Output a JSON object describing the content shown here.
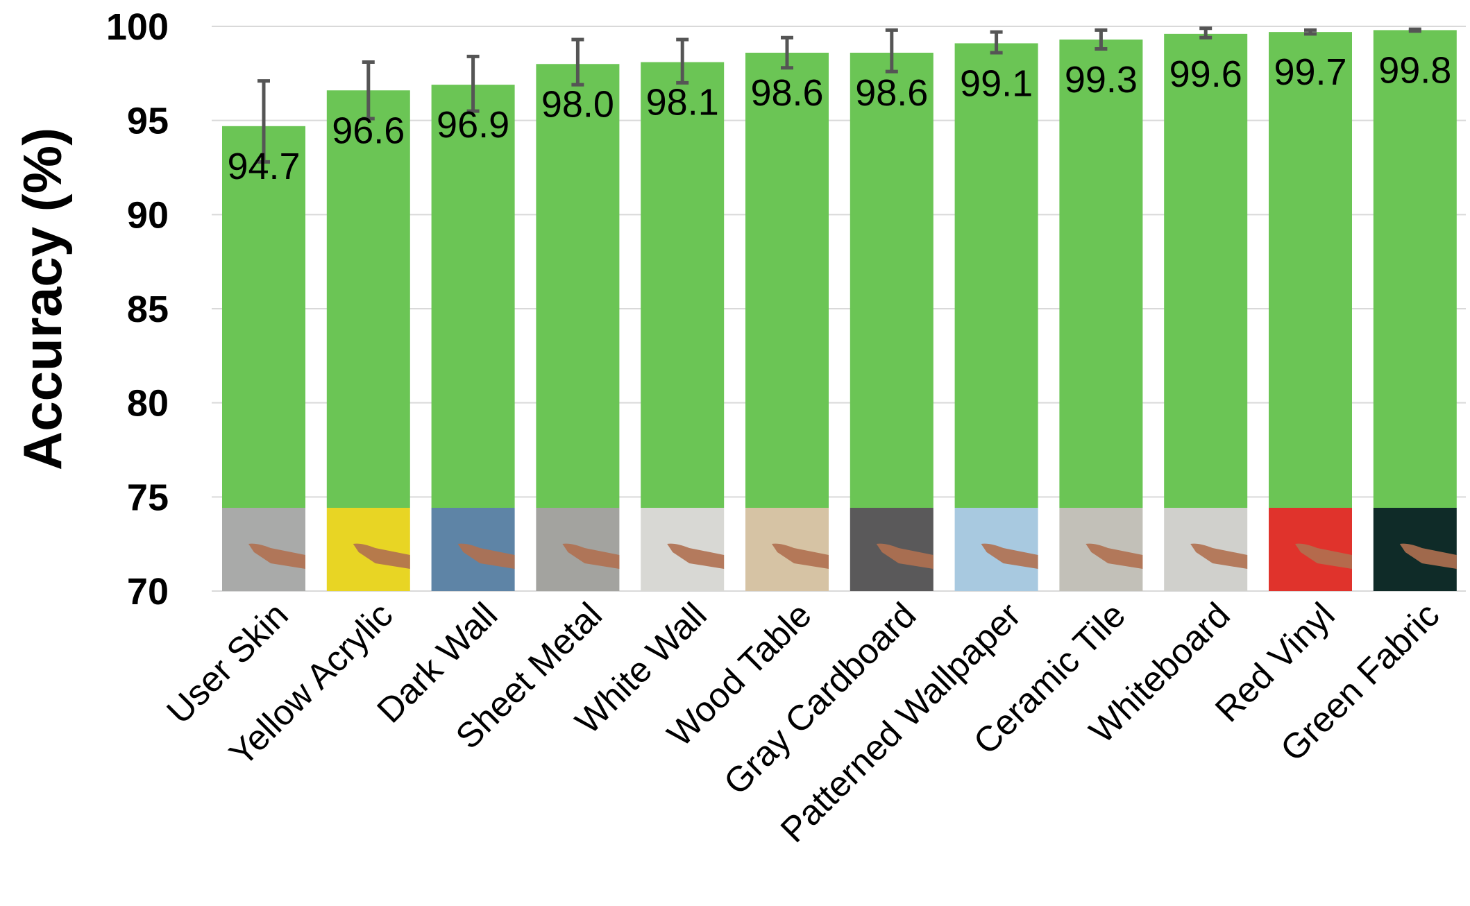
{
  "chart_data": {
    "type": "bar",
    "ylabel": "Accuracy (%)",
    "xlabel": "",
    "ylim": [
      70,
      100
    ],
    "yticks": [
      70,
      75,
      80,
      85,
      90,
      95,
      100
    ],
    "grid": true,
    "categories": [
      "User Skin",
      "Yellow Acrylic",
      "Dark Wall",
      "Sheet Metal",
      "White Wall",
      "Wood Table",
      "Gray Cardboard",
      "Patterned Wallpaper",
      "Ceramic Tile",
      "Whiteboard",
      "Red Vinyl",
      "Green Fabric"
    ],
    "values": [
      94.7,
      96.6,
      96.9,
      98.0,
      98.1,
      98.6,
      98.6,
      99.1,
      99.3,
      99.6,
      99.7,
      99.8
    ],
    "value_labels": [
      "94.7",
      "96.6",
      "96.9",
      "98.0",
      "98.1",
      "98.6",
      "98.6",
      "99.1",
      "99.3",
      "99.6",
      "99.7",
      "99.8"
    ],
    "error_low": [
      92.8,
      95.1,
      95.5,
      96.9,
      97.0,
      97.8,
      97.6,
      98.6,
      98.8,
      99.4,
      99.6,
      99.75
    ],
    "error_high": [
      97.1,
      98.1,
      98.4,
      99.3,
      99.3,
      99.4,
      99.8,
      99.7,
      99.8,
      99.9,
      99.8,
      99.85
    ],
    "bar_color": "#6bc555",
    "error_color": "#555555",
    "thumbnail_colors": [
      "#a9aaa9",
      "#e8d524",
      "#5e84a6",
      "#a3a39f",
      "#d8d8d4",
      "#d6c3a4",
      "#5a595a",
      "#a8c9e0",
      "#c2c0b8",
      "#d0d0cc",
      "#e0332c",
      "#0f2b28"
    ]
  }
}
